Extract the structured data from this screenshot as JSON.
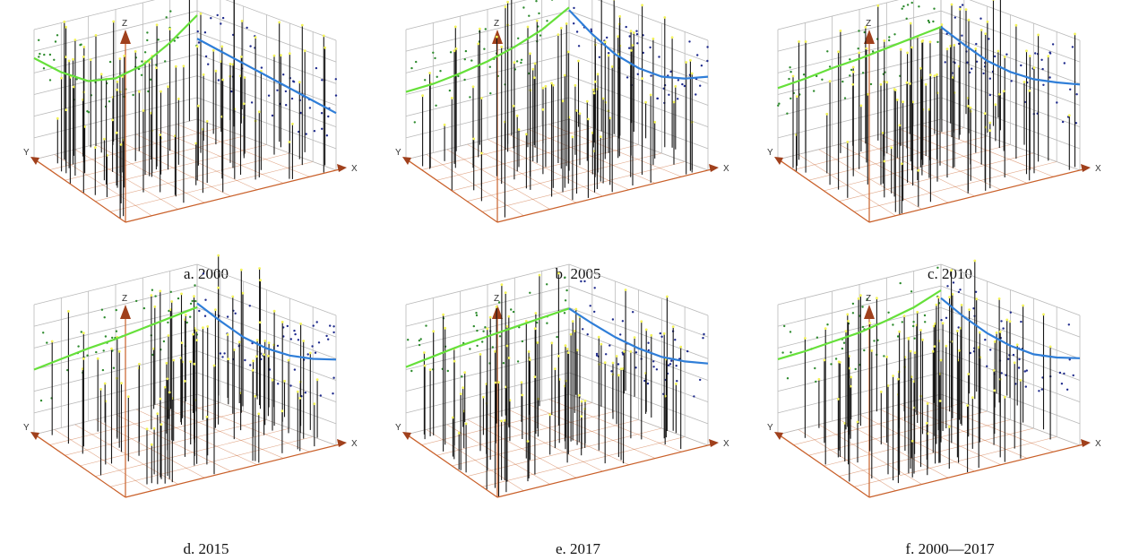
{
  "colors": {
    "grid": "#b9b9b9",
    "axis": "#c9602a",
    "zarrow": "#a0401c",
    "stick": "#151515",
    "west_trend": "#66e03a",
    "east_trend": "#2f7ed8",
    "west_points": "#2e8b2e",
    "east_points": "#1e2a8c",
    "tip": "#f3f35a"
  },
  "axis_labels": {
    "x": "X",
    "y": "Y",
    "z": "Z"
  },
  "chart_data": [
    {
      "type": "scatter",
      "chart_kind": "3d-trend-analysis",
      "caption": "a. 2000",
      "axes": [
        "X",
        "Y",
        "Z"
      ],
      "grid": true,
      "series": [
        {
          "role": "west-projection",
          "trend": [
            0.78,
            0.62,
            0.5,
            0.47,
            0.52,
            0.64,
            0.8
          ]
        },
        {
          "role": "east-projection",
          "trend": [
            0.62,
            0.59,
            0.56,
            0.53,
            0.5,
            0.47,
            0.44
          ]
        }
      ]
    },
    {
      "type": "scatter",
      "chart_kind": "3d-trend-analysis",
      "caption": "b. 2005",
      "axes": [
        "X",
        "Y",
        "Z"
      ],
      "grid": true,
      "series": [
        {
          "role": "west-projection",
          "trend": [
            0.52,
            0.53,
            0.56,
            0.6,
            0.66,
            0.74,
            0.86
          ]
        },
        {
          "role": "east-projection",
          "trend": [
            0.84,
            0.72,
            0.63,
            0.59,
            0.59,
            0.64,
            0.72
          ]
        }
      ]
    },
    {
      "type": "scatter",
      "chart_kind": "3d-trend-analysis",
      "caption": "c. 2010",
      "axes": [
        "X",
        "Y",
        "Z"
      ],
      "grid": true,
      "series": [
        {
          "role": "west-projection",
          "trend": [
            0.55,
            0.57,
            0.6,
            0.62,
            0.65,
            0.68,
            0.71
          ]
        },
        {
          "role": "east-projection",
          "trend": [
            0.71,
            0.64,
            0.58,
            0.56,
            0.57,
            0.61,
            0.66
          ]
        }
      ]
    },
    {
      "type": "scatter",
      "chart_kind": "3d-trend-analysis",
      "caption": "d. 2015",
      "axes": [
        "X",
        "Y",
        "Z"
      ],
      "grid": true,
      "series": [
        {
          "role": "west-projection",
          "trend": [
            0.5,
            0.53,
            0.56,
            0.58,
            0.61,
            0.64,
            0.67
          ]
        },
        {
          "role": "east-projection",
          "trend": [
            0.7,
            0.63,
            0.57,
            0.55,
            0.56,
            0.6,
            0.66
          ]
        }
      ]
    },
    {
      "type": "scatter",
      "chart_kind": "3d-trend-analysis",
      "caption": "e. 2017",
      "axes": [
        "X",
        "Y",
        "Z"
      ],
      "grid": true,
      "series": [
        {
          "role": "west-projection",
          "trend": [
            0.52,
            0.55,
            0.58,
            0.6,
            0.62,
            0.64,
            0.66
          ]
        },
        {
          "role": "east-projection",
          "trend": [
            0.66,
            0.61,
            0.57,
            0.55,
            0.55,
            0.58,
            0.63
          ]
        }
      ]
    },
    {
      "type": "scatter",
      "chart_kind": "3d-trend-analysis",
      "caption": "f. 2000—2017",
      "axes": [
        "X",
        "Y",
        "Z"
      ],
      "grid": true,
      "series": [
        {
          "role": "west-projection",
          "trend": [
            0.58,
            0.59,
            0.61,
            0.63,
            0.67,
            0.72,
            0.8
          ]
        },
        {
          "role": "east-projection",
          "trend": [
            0.74,
            0.66,
            0.6,
            0.57,
            0.57,
            0.61,
            0.67
          ]
        }
      ]
    }
  ]
}
